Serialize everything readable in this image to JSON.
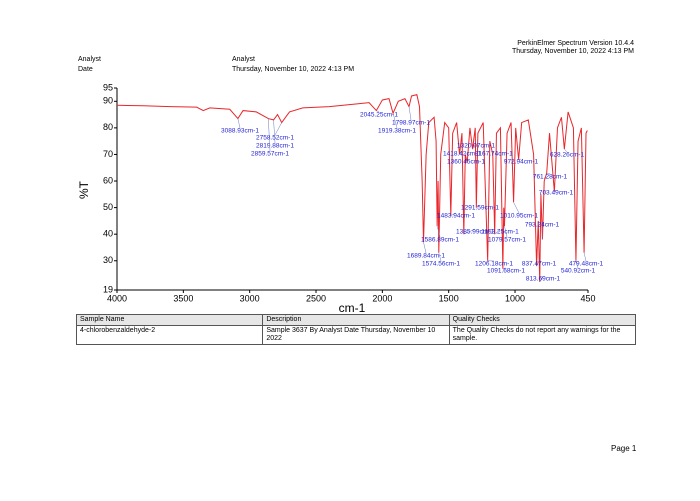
{
  "header": {
    "software": "PerkinElmer Spectrum Version 10.4.4",
    "timestamp": "Thursday, November 10, 2022 4:13 PM",
    "fields": [
      {
        "label": "Analyst",
        "value": "Analyst"
      },
      {
        "label": "Date",
        "value": "Thursday, November 10, 2022 4:13 PM"
      }
    ]
  },
  "chart_data": {
    "type": "line",
    "x_label": "cm-1",
    "y_label": "%T",
    "color": "#e8262b",
    "x": [
      4000,
      3800,
      3600,
      3400,
      3350,
      3300,
      3150,
      3088.93,
      3050,
      2950,
      2859.57,
      2819.88,
      2790,
      2758.52,
      2700,
      2600,
      2400,
      2200,
      2100,
      2045.25,
      2000,
      1950,
      1919.38,
      1880,
      1830,
      1798.97,
      1780,
      1740,
      1720,
      1700,
      1689.84,
      1670,
      1650,
      1610,
      1595,
      1586.89,
      1580,
      1574.56,
      1560,
      1530,
      1500,
      1483.94,
      1470,
      1440,
      1418.42,
      1400,
      1385.99,
      1375,
      1360.45,
      1340,
      1320.07,
      1300,
      1291.59,
      1280,
      1240,
      1206.18,
      1190,
      1167.74,
      1153.25,
      1140,
      1110,
      1091.68,
      1085,
      1079.57,
      1060,
      1030,
      1010.95,
      995,
      972.94,
      950,
      900,
      860,
      837.47,
      825,
      813.69,
      805,
      793.24,
      780,
      761.28,
      740,
      703.49,
      680,
      650,
      628.26,
      600,
      560,
      540.92,
      525,
      500,
      479.48,
      465,
      455
    ],
    "values": [
      88.5,
      88.3,
      88,
      87.8,
      86.5,
      87.5,
      87,
      83.5,
      86.5,
      86,
      83.5,
      83,
      85,
      82,
      86,
      87.5,
      88,
      89,
      89.5,
      86.5,
      90.5,
      91,
      85.5,
      90,
      91,
      88,
      92,
      92.5,
      88,
      60,
      37,
      70,
      82,
      84,
      75,
      43,
      60,
      33,
      70,
      82,
      80,
      47,
      78,
      82,
      70,
      78,
      40,
      70,
      67,
      80,
      72,
      80,
      50,
      78,
      82,
      30,
      75,
      70,
      40,
      78,
      80,
      27,
      50,
      43,
      78,
      82,
      52,
      80,
      68,
      82,
      83,
      70,
      28,
      45,
      22,
      55,
      38,
      60,
      63,
      78,
      56,
      80,
      84,
      72,
      86,
      80,
      30,
      75,
      80,
      33,
      78,
      79
    ],
    "xlim": [
      4000,
      450
    ],
    "ylim": [
      19,
      95
    ],
    "xticks": [
      4000,
      3500,
      3000,
      2500,
      2000,
      1500,
      1000,
      450
    ],
    "yticks": [
      19,
      30,
      40,
      50,
      60,
      70,
      80,
      90,
      95
    ],
    "annotations": [
      {
        "value": 3088.93,
        "label": "3088.93cm-1"
      },
      {
        "value": 2758.52,
        "label": "2758.52cm-1"
      },
      {
        "value": 2819.88,
        "label": "2819.88cm-1"
      },
      {
        "value": 2859.57,
        "label": "2859.57cm-1"
      },
      {
        "value": 2045.25,
        "label": "2045.25cm-1"
      },
      {
        "value": 1798.97,
        "label": "1798.97cm-1"
      },
      {
        "value": 1919.38,
        "label": "1919.38cm-1"
      },
      {
        "value": 1689.84,
        "label": "1689.84cm-1"
      },
      {
        "value": 1586.89,
        "label": "1586.89cm-1"
      },
      {
        "value": 1574.56,
        "label": "1574.56cm-1"
      },
      {
        "value": 1483.94,
        "label": "1483.94cm-1"
      },
      {
        "value": 1418.42,
        "label": "1418.42cm-1"
      },
      {
        "value": 1360.45,
        "label": "1360.45cm-1"
      },
      {
        "value": 1320.07,
        "label": "1320.07cm-1"
      },
      {
        "value": 1385.99,
        "label": "1385.99cm-1"
      },
      {
        "value": 1291.59,
        "label": "1291.59cm-1"
      },
      {
        "value": 1167.74,
        "label": "1167.74cm-1"
      },
      {
        "value": 1206.18,
        "label": "1206.18cm-1"
      },
      {
        "value": 1153.25,
        "label": "1153.25cm-1"
      },
      {
        "value": 1079.57,
        "label": "1079.57cm-1"
      },
      {
        "value": 1091.68,
        "label": "1091.68cm-1"
      },
      {
        "value": 1010.95,
        "label": "1010.95cm-1"
      },
      {
        "value": 972.94,
        "label": "972.94cm-1"
      },
      {
        "value": 837.47,
        "label": "837.47cm-1"
      },
      {
        "value": 813.69,
        "label": "813.69cm-1"
      },
      {
        "value": 793.24,
        "label": "793.24cm-1"
      },
      {
        "value": 761.28,
        "label": "761.28cm-1"
      },
      {
        "value": 703.49,
        "label": "703.49cm-1"
      },
      {
        "value": 628.26,
        "label": "628.26cm-1"
      },
      {
        "value": 540.92,
        "label": "540.92cm-1"
      },
      {
        "value": 479.48,
        "label": "479.48cm-1"
      }
    ]
  },
  "table": {
    "columns": [
      "Sample Name",
      "Description",
      "Quality Checks"
    ],
    "rows": [
      [
        "4-chlorobenzaldehyde-2",
        "Sample 3637 By Analyst Date Thursday, November 10 2022",
        "The Quality Checks do not report any warnings for the sample."
      ]
    ]
  },
  "footer": {
    "page": "Page 1"
  }
}
